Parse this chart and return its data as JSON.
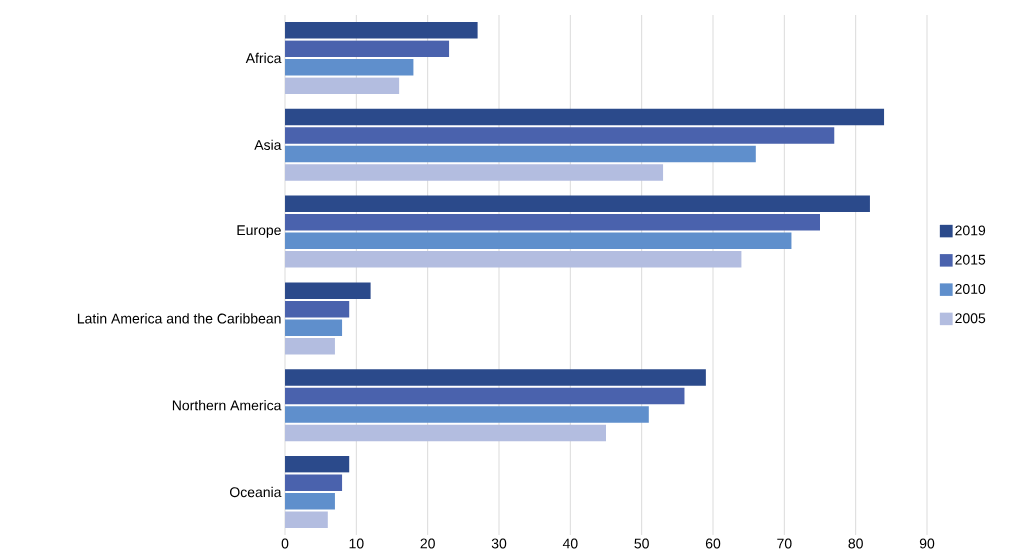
{
  "chart_data": {
    "type": "bar",
    "orientation": "horizontal",
    "categories": [
      "Africa",
      "Asia",
      "Europe",
      "Latin America and the Caribbean",
      "Northern America",
      "Oceania"
    ],
    "series": [
      {
        "name": "2019",
        "color": "#2b4a8b",
        "values": [
          27,
          84,
          82,
          12,
          59,
          9
        ]
      },
      {
        "name": "2015",
        "color": "#4a62ad",
        "values": [
          23,
          77,
          75,
          9,
          56,
          8
        ]
      },
      {
        "name": "2010",
        "color": "#5f8fcc",
        "values": [
          18,
          66,
          71,
          8,
          51,
          7
        ]
      },
      {
        "name": "2005",
        "color": "#b3bde0",
        "values": [
          16,
          53,
          64,
          7,
          45,
          6
        ]
      }
    ],
    "xlim": [
      0,
      90
    ],
    "xticks": [
      0,
      10,
      20,
      30,
      40,
      50,
      60,
      70,
      80,
      90
    ],
    "grid": "x",
    "legend": "right"
  }
}
